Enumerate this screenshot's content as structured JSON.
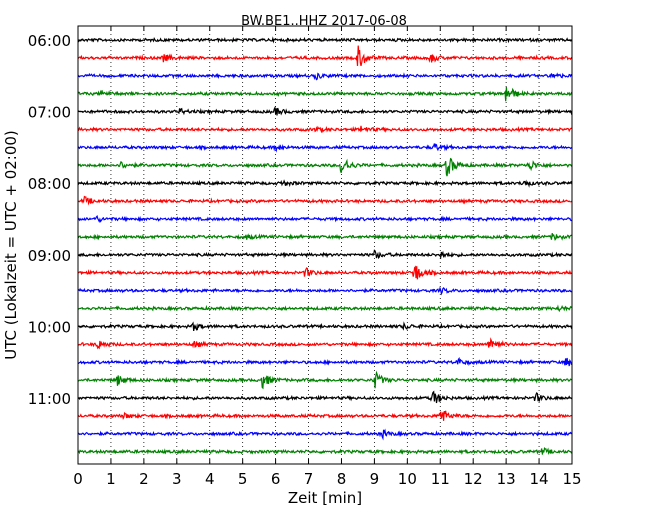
{
  "chart_data": {
    "type": "line",
    "title": "BW.BE1..HHZ 2017-06-08",
    "xlabel": "Zeit  [min]",
    "ylabel": "UTC (Lokalzeit = UTC + 02:00)",
    "xlim": [
      0,
      15
    ],
    "x_ticks": [
      "0",
      "1",
      "2",
      "3",
      "4",
      "5",
      "6",
      "7",
      "8",
      "9",
      "10",
      "11",
      "12",
      "13",
      "14",
      "15"
    ],
    "y_tick_labels": [
      "06:00",
      "07:00",
      "08:00",
      "09:00",
      "10:00",
      "11:00"
    ],
    "grid": "vertical dotted",
    "trace_interval_min": 15,
    "trace_colors": [
      "#000000",
      "#ff0000",
      "#0000ff",
      "#008000"
    ],
    "traces": [
      {
        "start": "06:00",
        "color": "#000000",
        "events": []
      },
      {
        "start": "06:15",
        "color": "#ff0000",
        "events": [
          {
            "t": 8.5,
            "amp": 1.0
          },
          {
            "t": 2.6,
            "amp": 0.3
          },
          {
            "t": 10.7,
            "amp": 0.35
          }
        ]
      },
      {
        "start": "06:30",
        "color": "#0000ff",
        "events": [
          {
            "t": 7.2,
            "amp": 0.25
          },
          {
            "t": 14.4,
            "amp": 0.2
          }
        ]
      },
      {
        "start": "06:45",
        "color": "#008000",
        "events": [
          {
            "t": 13.0,
            "amp": 0.8
          },
          {
            "t": 0.7,
            "amp": 0.2
          }
        ]
      },
      {
        "start": "07:00",
        "color": "#000000",
        "events": [
          {
            "t": 6.0,
            "amp": 0.3
          },
          {
            "t": 3.1,
            "amp": 0.2
          }
        ]
      },
      {
        "start": "07:15",
        "color": "#ff0000",
        "events": [
          {
            "t": 8.6,
            "amp": 0.25
          },
          {
            "t": 7.2,
            "amp": 0.15
          }
        ]
      },
      {
        "start": "07:30",
        "color": "#0000ff",
        "events": [
          {
            "t": 10.8,
            "amp": 0.3
          },
          {
            "t": 6.0,
            "amp": 0.2
          }
        ]
      },
      {
        "start": "07:45",
        "color": "#008000",
        "events": [
          {
            "t": 8.0,
            "amp": 0.8
          },
          {
            "t": 11.2,
            "amp": 0.9
          },
          {
            "t": 13.7,
            "amp": 0.4
          },
          {
            "t": 1.3,
            "amp": 0.25
          }
        ]
      },
      {
        "start": "08:00",
        "color": "#000000",
        "events": [
          {
            "t": 6.2,
            "amp": 0.2
          },
          {
            "t": 13.5,
            "amp": 0.25
          }
        ]
      },
      {
        "start": "08:15",
        "color": "#ff0000",
        "events": [
          {
            "t": 0.2,
            "amp": 0.3
          }
        ]
      },
      {
        "start": "08:30",
        "color": "#0000ff",
        "events": [
          {
            "t": 0.55,
            "amp": 0.2
          }
        ]
      },
      {
        "start": "08:45",
        "color": "#008000",
        "events": [
          {
            "t": 14.4,
            "amp": 0.25
          },
          {
            "t": 5.1,
            "amp": 0.15
          }
        ]
      },
      {
        "start": "09:00",
        "color": "#000000",
        "events": [
          {
            "t": 9.0,
            "amp": 0.3
          },
          {
            "t": 11.0,
            "amp": 0.25
          }
        ]
      },
      {
        "start": "09:15",
        "color": "#ff0000",
        "events": [
          {
            "t": 10.2,
            "amp": 0.9
          },
          {
            "t": 6.9,
            "amp": 0.35
          }
        ]
      },
      {
        "start": "09:30",
        "color": "#0000ff",
        "events": [
          {
            "t": 11.0,
            "amp": 0.2
          }
        ]
      },
      {
        "start": "09:45",
        "color": "#008000",
        "events": [
          {
            "t": 14.6,
            "amp": 0.15
          }
        ]
      },
      {
        "start": "10:00",
        "color": "#000000",
        "events": [
          {
            "t": 3.5,
            "amp": 0.3
          },
          {
            "t": 9.9,
            "amp": 0.2
          }
        ]
      },
      {
        "start": "10:15",
        "color": "#ff0000",
        "events": [
          {
            "t": 12.5,
            "amp": 0.6
          },
          {
            "t": 0.6,
            "amp": 0.35
          },
          {
            "t": 3.5,
            "amp": 0.25
          }
        ]
      },
      {
        "start": "10:30",
        "color": "#0000ff",
        "events": [
          {
            "t": 14.8,
            "amp": 0.35
          },
          {
            "t": 11.5,
            "amp": 0.3
          }
        ]
      },
      {
        "start": "10:45",
        "color": "#008000",
        "events": [
          {
            "t": 5.6,
            "amp": 0.6
          },
          {
            "t": 1.2,
            "amp": 0.4
          },
          {
            "t": 9.0,
            "amp": 0.7
          }
        ]
      },
      {
        "start": "11:00",
        "color": "#000000",
        "events": [
          {
            "t": 10.75,
            "amp": 0.65
          },
          {
            "t": 13.9,
            "amp": 0.35
          }
        ]
      },
      {
        "start": "11:15",
        "color": "#ff0000",
        "events": [
          {
            "t": 11.0,
            "amp": 0.7
          },
          {
            "t": 1.4,
            "amp": 0.2
          }
        ]
      },
      {
        "start": "11:30",
        "color": "#0000ff",
        "events": [
          {
            "t": 9.2,
            "amp": 0.3
          }
        ]
      },
      {
        "start": "11:45",
        "color": "#008000",
        "events": [
          {
            "t": 14.1,
            "amp": 0.25
          }
        ]
      }
    ]
  }
}
